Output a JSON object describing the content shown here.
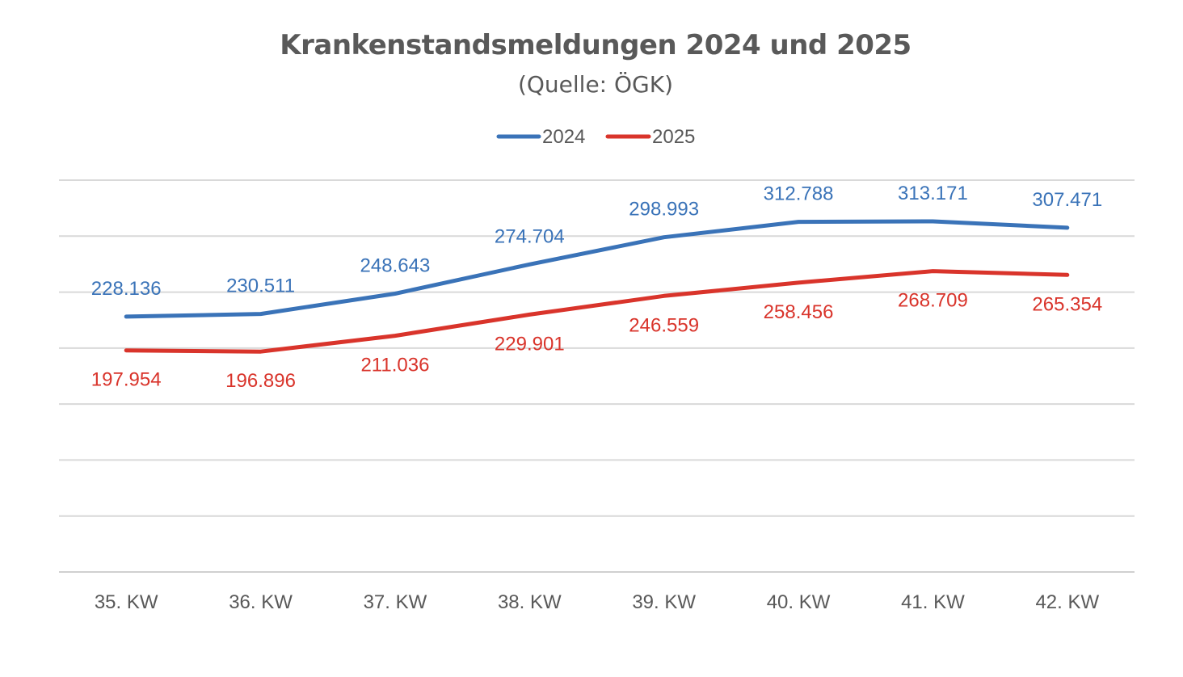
{
  "chart_data": {
    "type": "line",
    "title": "Krankenstandsmeldungen 2024 und 2025",
    "subtitle": "(Quelle: ÖGK)",
    "categories": [
      "35. KW",
      "36. KW",
      "37. KW",
      "38. KW",
      "39. KW",
      "40. KW",
      "41. KW",
      "42. KW"
    ],
    "series": [
      {
        "name": "2024",
        "color": "#3a73b8",
        "label_position": "above",
        "values": [
          228136,
          230511,
          248643,
          274704,
          298993,
          312788,
          313171,
          307471
        ],
        "labels": [
          "228.136",
          "230.511",
          "248.643",
          "274.704",
          "298.993",
          "312.788",
          "313.171",
          "307.471"
        ]
      },
      {
        "name": "2025",
        "color": "#d9342b",
        "label_position": "below",
        "values": [
          197954,
          196896,
          211036,
          229901,
          246559,
          258456,
          268709,
          265354
        ],
        "labels": [
          "197.954",
          "196.896",
          "211.036",
          "229.901",
          "246.559",
          "258.456",
          "268.709",
          "265.354"
        ]
      }
    ],
    "ylim": [
      0,
      350000
    ],
    "ytick_step": 50000,
    "grid": true,
    "legend": "top-center",
    "xlabel": "",
    "ylabel": ""
  }
}
